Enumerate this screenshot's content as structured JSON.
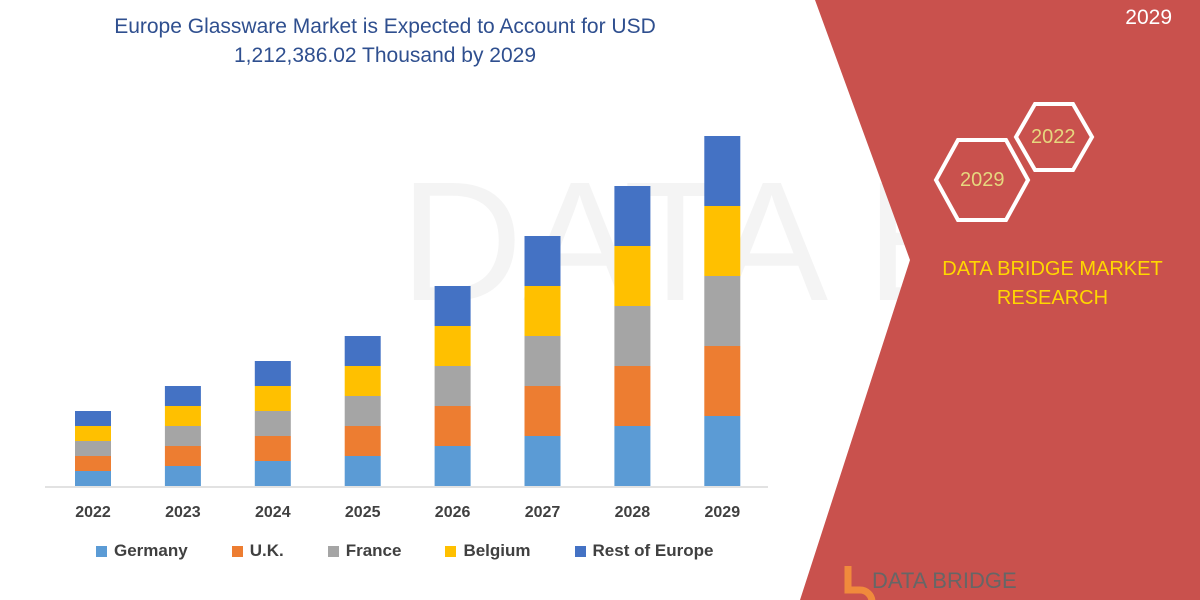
{
  "header": {
    "title_line1": "Europe Glassware Market is Expected to Account for USD",
    "title_line2": "1,212,386.02 Thousand by 2029",
    "top_right_fragment": "2029"
  },
  "side_panel": {
    "hex_years": [
      "2022",
      "2029"
    ],
    "brand_line1": "DATA BRIDGE MARKET",
    "brand_line2": "RESEARCH",
    "logo_text": "DATA BRIDGE",
    "panel_color": "#C9514D",
    "brand_color": "#FFD700"
  },
  "chart_data": {
    "type": "bar",
    "stacked": true,
    "title": "",
    "xlabel": "",
    "ylabel": "",
    "y_axis_shown": false,
    "grid": false,
    "legend_position": "bottom",
    "categories": [
      "2022",
      "2023",
      "2024",
      "2025",
      "2026",
      "2027",
      "2028",
      "2029"
    ],
    "series": [
      {
        "name": "Germany",
        "color": "#5B9BD5",
        "values": [
          15,
          20,
          25,
          30,
          40,
          50,
          60,
          70
        ]
      },
      {
        "name": "U.K.",
        "color": "#ED7D31",
        "values": [
          15,
          20,
          25,
          30,
          40,
          50,
          60,
          70
        ]
      },
      {
        "name": "France",
        "color": "#A5A5A5",
        "values": [
          15,
          20,
          25,
          30,
          40,
          50,
          60,
          70
        ]
      },
      {
        "name": "Belgium",
        "color": "#FFC000",
        "values": [
          15,
          20,
          25,
          30,
          40,
          50,
          60,
          70
        ]
      },
      {
        "name": "Rest of Europe",
        "color": "#4472C4",
        "values": [
          15,
          20,
          25,
          30,
          40,
          50,
          60,
          70
        ]
      }
    ]
  }
}
